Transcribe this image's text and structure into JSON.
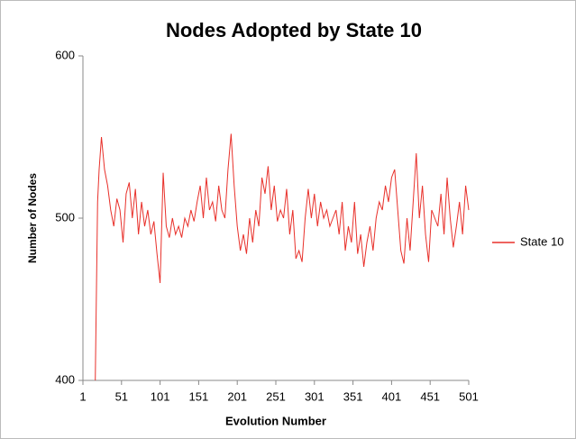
{
  "chart_data": {
    "type": "line",
    "title": "Nodes Adopted by State 10",
    "x_label": "Evolution Number",
    "y_label": "Number of Nodes",
    "xlim": [
      1,
      501
    ],
    "xticks": [
      1,
      51,
      101,
      151,
      201,
      251,
      301,
      351,
      401,
      451,
      501
    ],
    "ylim": [
      400,
      600
    ],
    "yticks": [
      400,
      500,
      600
    ],
    "grid": false,
    "legend": "right",
    "x": [
      17,
      20,
      22,
      25,
      29,
      33,
      37,
      41,
      45,
      49,
      53,
      57,
      61,
      65,
      69,
      73,
      77,
      81,
      85,
      89,
      93,
      97,
      101,
      105,
      109,
      113,
      117,
      121,
      125,
      129,
      133,
      137,
      141,
      145,
      149,
      153,
      157,
      161,
      165,
      169,
      173,
      177,
      181,
      185,
      189,
      193,
      197,
      201,
      205,
      209,
      213,
      217,
      221,
      225,
      229,
      233,
      237,
      241,
      245,
      249,
      253,
      257,
      261,
      265,
      269,
      273,
      277,
      281,
      285,
      289,
      293,
      297,
      301,
      305,
      309,
      313,
      317,
      321,
      325,
      329,
      333,
      337,
      341,
      345,
      349,
      353,
      357,
      361,
      365,
      369,
      373,
      377,
      381,
      385,
      389,
      393,
      397,
      401,
      405,
      409,
      413,
      417,
      421,
      425,
      429,
      433,
      437,
      441,
      445,
      449,
      453,
      457,
      461,
      465,
      469,
      473,
      477,
      481,
      485,
      489,
      493,
      497,
      501
    ],
    "series": [
      {
        "name": "State 10",
        "color": "#e8302a",
        "values": [
          400,
          510,
          530,
          550,
          530,
          520,
          505,
          495,
          512,
          505,
          485,
          515,
          522,
          500,
          518,
          490,
          510,
          495,
          505,
          490,
          498,
          478,
          460,
          528,
          495,
          488,
          500,
          490,
          495,
          488,
          500,
          495,
          505,
          498,
          510,
          520,
          500,
          525,
          505,
          510,
          498,
          520,
          505,
          500,
          530,
          552,
          520,
          495,
          480,
          490,
          478,
          500,
          485,
          505,
          495,
          525,
          515,
          532,
          505,
          520,
          498,
          505,
          500,
          518,
          490,
          505,
          475,
          480,
          473,
          500,
          518,
          500,
          515,
          495,
          510,
          500,
          505,
          495,
          500,
          505,
          490,
          510,
          480,
          495,
          485,
          510,
          478,
          490,
          470,
          485,
          495,
          480,
          500,
          510,
          505,
          520,
          510,
          525,
          530,
          505,
          480,
          472,
          500,
          480,
          510,
          540,
          500,
          520,
          490,
          473,
          505,
          500,
          495,
          515,
          490,
          525,
          500,
          482,
          495,
          510,
          490,
          520,
          505
        ]
      }
    ]
  }
}
